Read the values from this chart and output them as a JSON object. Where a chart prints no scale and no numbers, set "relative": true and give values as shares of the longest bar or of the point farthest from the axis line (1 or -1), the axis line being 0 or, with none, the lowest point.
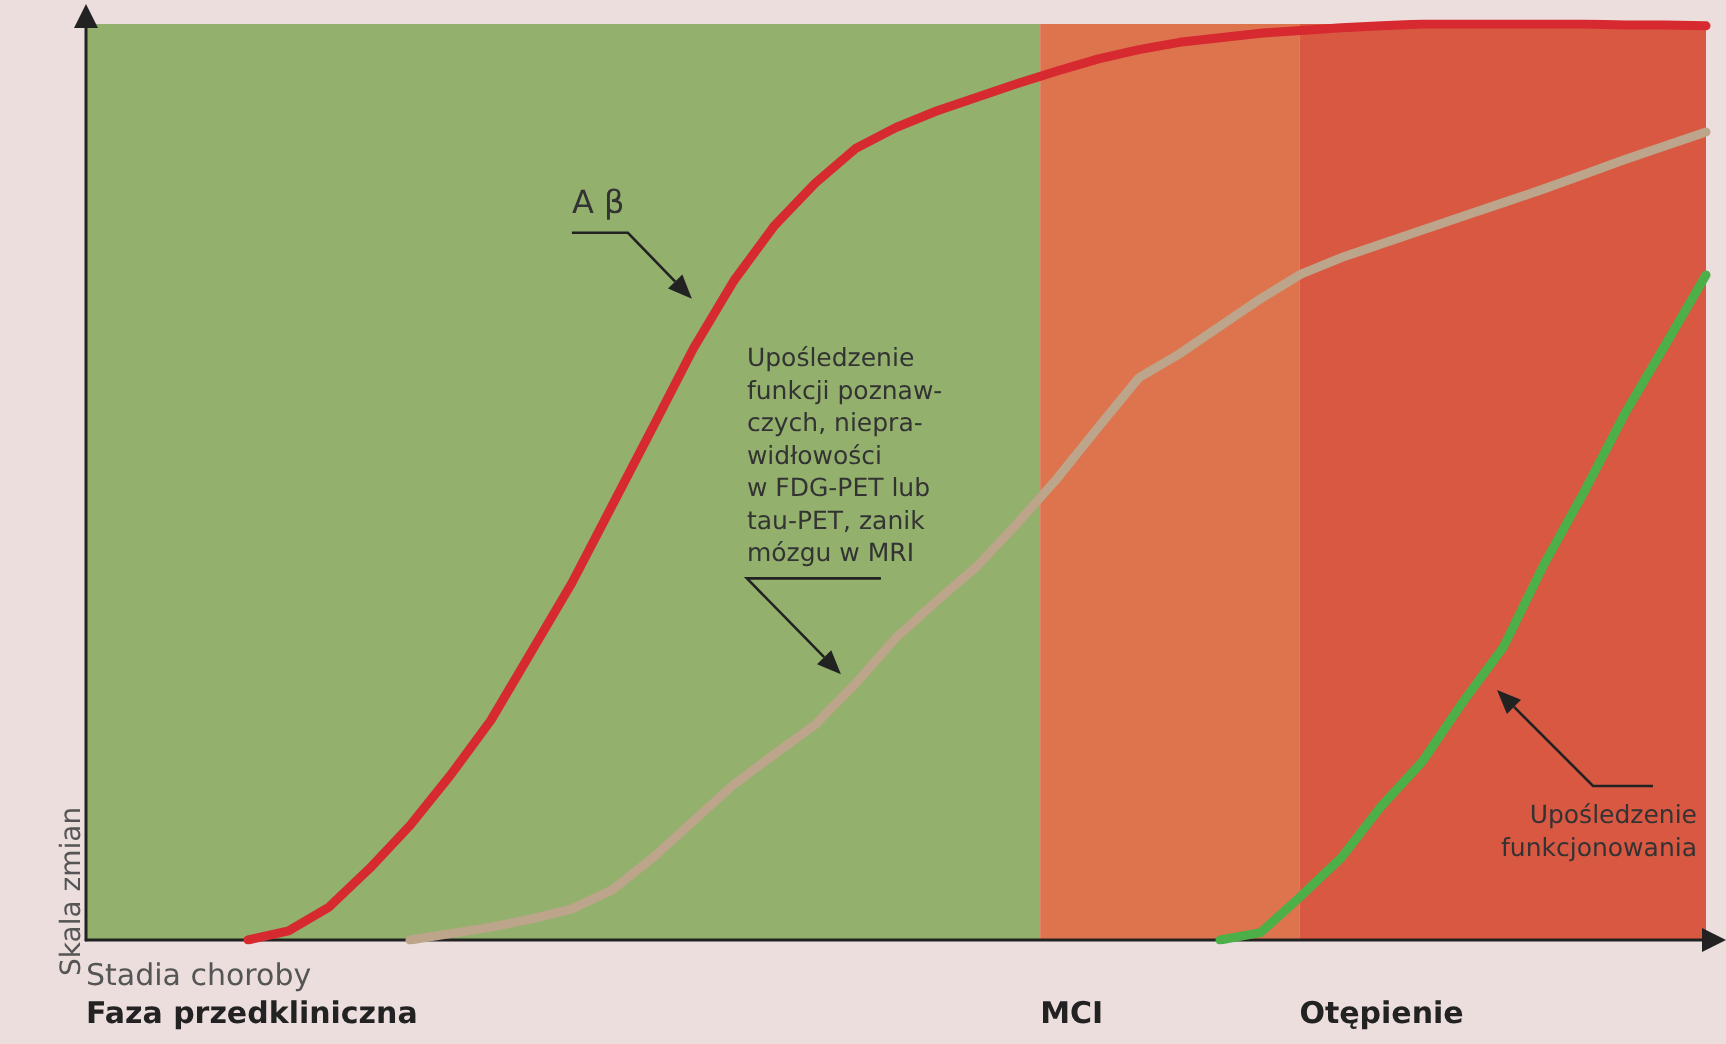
{
  "chart_data": {
    "type": "line",
    "relative": true,
    "xlabel": "Stadia choroby",
    "ylabel": "Skala zmian",
    "grid": false,
    "marker": "none",
    "line_style": "solid",
    "categories": [
      null,
      null,
      null,
      null,
      null,
      null,
      null,
      null,
      null,
      null,
      null,
      null,
      null,
      null,
      null,
      null,
      null,
      null,
      null,
      null,
      null,
      null,
      null,
      null,
      null,
      null,
      null,
      null,
      null,
      null,
      null,
      null,
      null,
      null,
      null,
      null,
      null,
      null,
      null,
      null,
      null
    ],
    "series": [
      {
        "color": "#d62930",
        "values": [
          null,
          null,
          null,
          null,
          0,
          0.01,
          0.036,
          0.078,
          0.125,
          0.18,
          0.24,
          0.315,
          0.39,
          0.475,
          0.56,
          0.646,
          0.72,
          0.78,
          0.826,
          0.864,
          0.887,
          0.905,
          0.92,
          0.935,
          0.949,
          0.962,
          0.972,
          0.98,
          0.985,
          0.99,
          0.993,
          0.996,
          0.998,
          1,
          1,
          1,
          1,
          1,
          0.999,
          0.999,
          0.998
        ]
      },
      {
        "color": "#bca58a",
        "values": [
          null,
          null,
          null,
          null,
          null,
          null,
          null,
          null,
          0,
          0.007,
          0.014,
          0.023,
          0.034,
          0.055,
          0.09,
          0.13,
          0.17,
          0.203,
          0.235,
          0.28,
          0.33,
          0.37,
          0.408,
          0.455,
          0.505,
          0.56,
          0.614,
          0.64,
          0.67,
          0.7,
          0.727,
          0.745,
          0.76,
          0.775,
          0.79,
          0.805,
          0.82,
          0.836,
          0.852,
          0.867,
          0.882
        ]
      },
      {
        "color": "#4caf48",
        "values": [
          null,
          null,
          null,
          null,
          null,
          null,
          null,
          null,
          null,
          null,
          null,
          null,
          null,
          null,
          null,
          null,
          null,
          null,
          null,
          null,
          null,
          null,
          null,
          null,
          null,
          null,
          null,
          null,
          0,
          0.008,
          0.048,
          0.09,
          0.147,
          0.195,
          0.26,
          0.32,
          0.41,
          0.49,
          0.575,
          0.65,
          0.726
        ]
      }
    ],
    "annotations": [
      "A β",
      "Upośledzenie\nfunkcji poznaw-\nczych, niepra-\nwidłowości\nw FDG-PET lub\ntau-PET, zanik\nmózgu w MRI",
      "Upośledzenie\nfunkcjonowania",
      "Faza przedkliniczna",
      "MCI",
      "Otępienie"
    ]
  }
}
